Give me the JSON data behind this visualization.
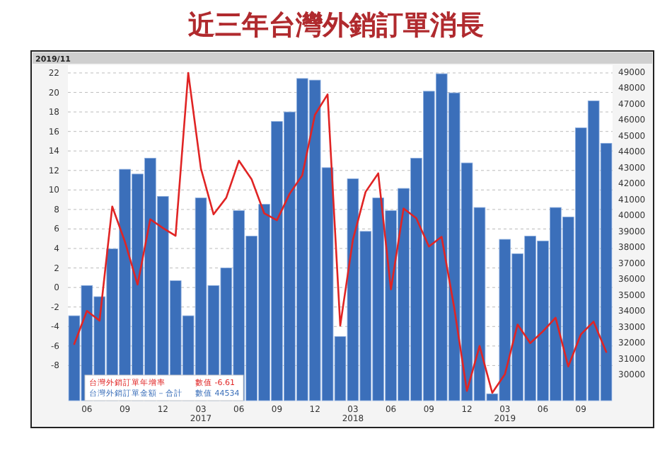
{
  "chart_data": {
    "type": "bar",
    "title": "近三年台灣外銷訂單消長",
    "categories": [
      null,
      "06",
      null,
      null,
      "09",
      null,
      null,
      "12",
      null,
      null,
      "03 2017",
      null,
      null,
      "06",
      null,
      null,
      "09",
      null,
      null,
      "12",
      null,
      null,
      "03 2018",
      null,
      null,
      "06",
      null,
      null,
      "09",
      null,
      null,
      "12",
      null,
      null,
      "03 2019",
      null,
      null,
      "06",
      null,
      null,
      "09",
      null,
      null
    ],
    "series": [
      {
        "name": "台灣外銷訂單年增率",
        "type": "line",
        "color": "#e02424",
        "values": [
          -5.8,
          -2.4,
          -3.4,
          8.3,
          4.7,
          0.3,
          7.0,
          6.1,
          5.3,
          22.0,
          12.2,
          7.5,
          9.2,
          13.0,
          11.1,
          7.6,
          6.9,
          9.6,
          11.5,
          17.7,
          19.8,
          -3.9,
          4.9,
          9.8,
          11.7,
          -0.2,
          8.1,
          7.1,
          4.2,
          5.2,
          -2.1,
          -10.6,
          -6.0,
          -10.8,
          -8.9,
          -3.8,
          -5.7,
          -4.5,
          -3.1,
          -8.1,
          -4.8,
          -3.5,
          -6.61
        ]
      },
      {
        "name": "台灣外銷訂單金額－合計",
        "axis": "y2",
        "color": "#3b6fba",
        "values": [
          33700,
          35600,
          34900,
          37900,
          42900,
          42600,
          43600,
          41200,
          35900,
          33700,
          41100,
          35600,
          36700,
          40300,
          38700,
          40700,
          45900,
          46500,
          48600,
          48500,
          43000,
          32400,
          42300,
          39000,
          41100,
          40300,
          41700,
          43600,
          47800,
          48900,
          47700,
          43300,
          40500,
          28800,
          38500,
          37600,
          38700,
          38400,
          40500,
          39900,
          45500,
          47200,
          44534
        ]
      }
    ],
    "ylim": [
      -11.6,
      22.8
    ],
    "yticks": [
      -8,
      -6,
      -4,
      -2,
      0,
      2,
      4,
      6,
      8,
      10,
      12,
      14,
      16,
      18,
      20,
      22
    ],
    "y2lim": [
      28370,
      49440
    ],
    "y2ticks": [
      30000,
      31000,
      32000,
      33000,
      34000,
      35000,
      36000,
      37000,
      38000,
      39000,
      40000,
      41000,
      42000,
      43000,
      44000,
      45000,
      46000,
      47000,
      48000,
      49000
    ],
    "grid": "y",
    "legend": "bottom left",
    "annotations": [
      "2019/11",
      "數值 -6.61",
      "數值 44534"
    ]
  }
}
